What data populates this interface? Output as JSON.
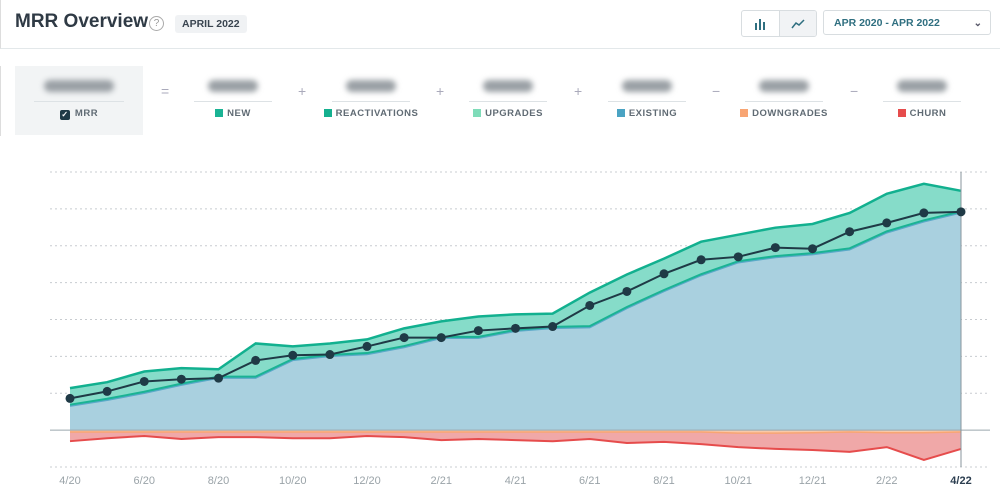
{
  "header": {
    "title": "MRR Overview",
    "help_icon": "question-circle-icon",
    "period_badge": "APRIL 2022",
    "date_range": "APR 2020 - APR 2022",
    "view_toggle": {
      "options": [
        "bar-chart-icon",
        "line-chart-icon"
      ],
      "selected": "line-chart-icon"
    }
  },
  "summary": {
    "items": [
      {
        "label": "MRR",
        "checked": true,
        "color": "#1f3a46"
      },
      {
        "label": "NEW",
        "color": "#1ab394"
      },
      {
        "label": "REACTIVATIONS",
        "color": "#15b08f"
      },
      {
        "label": "UPGRADES",
        "color": "#7fdcb9"
      },
      {
        "label": "EXISTING",
        "color": "#4aa3c3"
      },
      {
        "label": "DOWNGRADES",
        "color": "#f8a573"
      },
      {
        "label": "CHURN",
        "color": "#e64c4c"
      }
    ],
    "operators": [
      "=",
      "+",
      "+",
      "+",
      "−",
      "−"
    ]
  },
  "chart_data": {
    "type": "area",
    "x": [
      "4/20",
      "5/20",
      "6/20",
      "7/20",
      "8/20",
      "9/20",
      "10/20",
      "11/20",
      "12/20",
      "1/21",
      "2/21",
      "3/21",
      "4/21",
      "5/21",
      "6/21",
      "7/21",
      "8/21",
      "9/21",
      "10/21",
      "11/21",
      "12/21",
      "1/22",
      "2/22",
      "3/22",
      "4/22"
    ],
    "tick_labels": [
      "4/20",
      "6/20",
      "8/20",
      "10/20",
      "12/20",
      "2/21",
      "4/21",
      "6/21",
      "8/21",
      "10/21",
      "12/21",
      "2/22",
      "4/22"
    ],
    "highlighted_tick": "4/22",
    "ylim": [
      -1,
      7
    ],
    "y_tick_labels_shown": false,
    "grid": true,
    "series": [
      {
        "key": "existing",
        "color": "#a9d0df",
        "values": [
          0.65,
          0.81,
          1.0,
          1.22,
          1.41,
          1.41,
          1.89,
          2.0,
          2.05,
          2.24,
          2.49,
          2.49,
          2.68,
          2.76,
          2.78,
          3.3,
          3.76,
          4.19,
          4.54,
          4.68,
          4.76,
          4.89,
          5.35,
          5.65,
          5.89
        ]
      },
      {
        "key": "total_growth",
        "color": "#1ab394",
        "values": [
          1.14,
          1.3,
          1.59,
          1.68,
          1.65,
          2.35,
          2.27,
          2.35,
          2.46,
          2.76,
          2.95,
          3.08,
          3.14,
          3.16,
          3.73,
          4.22,
          4.65,
          5.11,
          5.3,
          5.49,
          5.59,
          5.89,
          6.41,
          6.68,
          6.49
        ]
      },
      {
        "key": "mrr",
        "color": "#1f3a46",
        "values": [
          0.86,
          1.05,
          1.32,
          1.38,
          1.41,
          1.89,
          2.03,
          2.05,
          2.27,
          2.51,
          2.51,
          2.7,
          2.76,
          2.81,
          3.38,
          3.76,
          4.24,
          4.62,
          4.7,
          4.95,
          4.92,
          5.38,
          5.62,
          5.89,
          5.92
        ]
      },
      {
        "key": "downgrades",
        "color": "#f8a573",
        "values": [
          -0.05,
          -0.05,
          -0.05,
          -0.05,
          -0.05,
          -0.05,
          -0.05,
          -0.05,
          -0.05,
          -0.05,
          -0.05,
          -0.05,
          -0.05,
          -0.05,
          -0.05,
          -0.05,
          -0.05,
          -0.05,
          -0.08,
          -0.08,
          -0.07,
          -0.05,
          -0.07,
          -0.07,
          -0.05
        ]
      },
      {
        "key": "churn",
        "color": "#e64c4c",
        "values": [
          -0.3,
          -0.22,
          -0.16,
          -0.24,
          -0.19,
          -0.19,
          -0.22,
          -0.22,
          -0.16,
          -0.19,
          -0.27,
          -0.24,
          -0.27,
          -0.3,
          -0.24,
          -0.35,
          -0.32,
          -0.38,
          -0.46,
          -0.51,
          -0.54,
          -0.59,
          -0.46,
          -0.81,
          -0.51
        ]
      }
    ]
  }
}
